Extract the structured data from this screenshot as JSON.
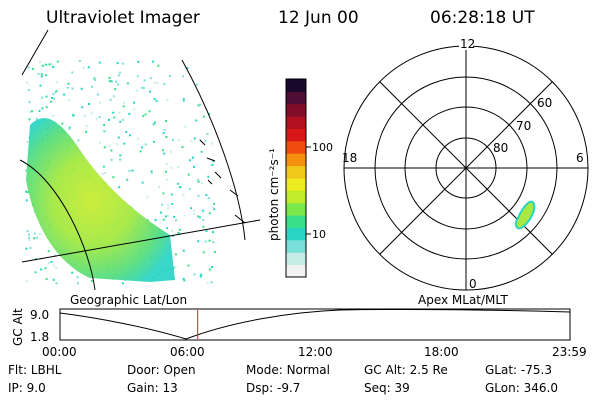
{
  "header": {
    "instrument": "Ultraviolet Imager",
    "date": "12 Jun 00",
    "time": "06:28:18 UT"
  },
  "colorbar": {
    "unit_label": "photon cm⁻²s⁻¹",
    "ticks": [
      "100",
      "10"
    ],
    "colors": [
      "#f2f2f2",
      "#c6ece8",
      "#78e0d8",
      "#28d4c4",
      "#38e08c",
      "#7ce84c",
      "#c0ec2c",
      "#ecec20",
      "#f0c818",
      "#f49010",
      "#f04c10",
      "#d81818",
      "#b01020",
      "#800c28",
      "#4c0c34",
      "#18082c"
    ]
  },
  "polar_plot": {
    "labels": {
      "top": "12",
      "left": "18",
      "right": "6",
      "bottom": "0"
    },
    "lat_labels": [
      "60",
      "70",
      "80"
    ]
  },
  "timeline": {
    "ylabel": "GC Alt",
    "yticks": [
      "9.0",
      "1.8"
    ],
    "xticks": [
      "00:00",
      "06:00",
      "12:00",
      "18:00",
      "23:59"
    ],
    "left_caption": "Geographic Lat/Lon",
    "right_caption": "Apex MLat/MLT",
    "current_time_fraction": 0.27
  },
  "info": {
    "row1": [
      {
        "label": "Flt:",
        "value": "LBHL"
      },
      {
        "label": "Door:",
        "value": "Open"
      },
      {
        "label": "Mode:",
        "value": "Normal"
      },
      {
        "label": "GC Alt:",
        "value": "2.5 Re"
      },
      {
        "label": "GLat:",
        "value": "-75.3"
      }
    ],
    "row2": [
      {
        "label": "IP:",
        "value": "9.0"
      },
      {
        "label": "Gain:",
        "value": "13"
      },
      {
        "label": "Dsp:",
        "value": "-9.7"
      },
      {
        "label": "Seq:",
        "value": "39"
      },
      {
        "label": "GLon:",
        "value": "346.0"
      }
    ]
  }
}
